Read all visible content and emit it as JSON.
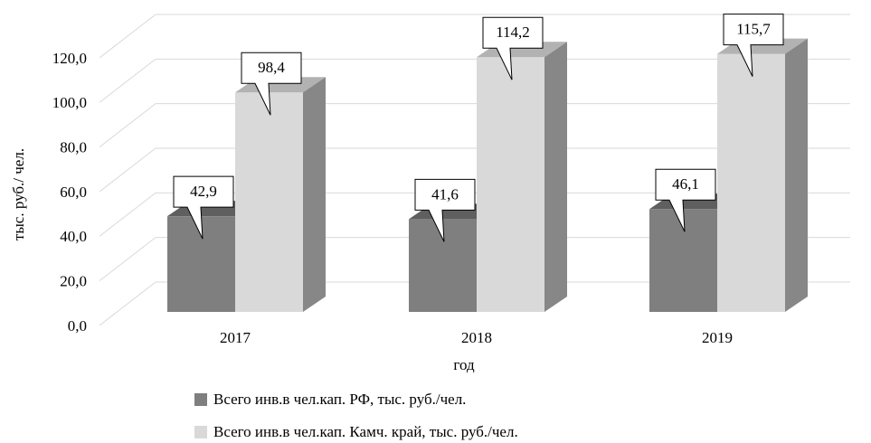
{
  "chart_data": {
    "type": "bar3d",
    "ylabel": "тыс. руб./ чел.",
    "xlabel": "год",
    "categories": [
      "2017",
      "2018",
      "2019"
    ],
    "series": [
      {
        "name": "Всего инв.в чел.кап. РФ, тыс. руб./чел.",
        "color": "#7f7f7f",
        "values": [
          42.9,
          41.6,
          46.1
        ],
        "value_labels": [
          "42,9",
          "41,6",
          "46,1"
        ]
      },
      {
        "name": "Всего инв.в чел.кап. Камч. край, тыс. руб./чел.",
        "color": "#d9d9d9",
        "values": [
          98.4,
          114.2,
          115.7
        ],
        "value_labels": [
          "98,4",
          "114,2",
          "115,7"
        ]
      }
    ],
    "ylim": [
      0,
      120
    ],
    "yticks": [
      {
        "value": 0,
        "label": "0,0"
      },
      {
        "value": 20,
        "label": "20,0"
      },
      {
        "value": 40,
        "label": "40,0"
      },
      {
        "value": 60,
        "label": "60,0"
      },
      {
        "value": 80,
        "label": "80,0"
      },
      {
        "value": 100,
        "label": "100,0"
      },
      {
        "value": 120,
        "label": "120,0"
      }
    ],
    "grid": true,
    "legend": "bottom"
  }
}
